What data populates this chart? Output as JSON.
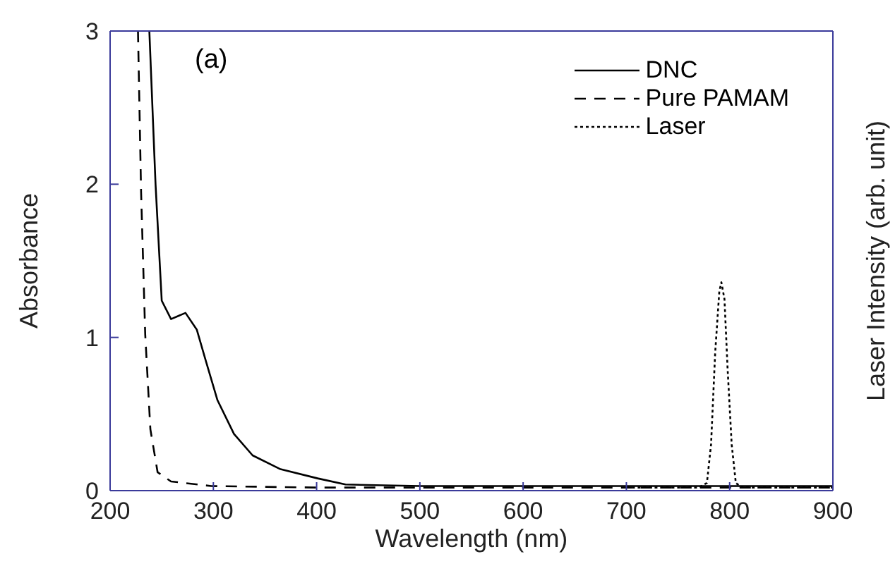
{
  "chart_data": {
    "type": "line",
    "xlabel": "Wavelength (nm)",
    "ylabel": "Absorbance",
    "y2label": "Laser Intensity (arb. unit)",
    "annotations": [
      "(a)"
    ],
    "xlim": [
      200,
      900
    ],
    "xticks": [
      200,
      300,
      400,
      500,
      600,
      700,
      800,
      900
    ],
    "ylim": [
      0,
      3
    ],
    "yticks": [
      0,
      1,
      2,
      3
    ],
    "legend": "top right",
    "marker": "none",
    "series": [
      {
        "name": "DNC",
        "color": "#000000",
        "line_style": "solid",
        "x": [
          238,
          244,
          250,
          259,
          273,
          284,
          293,
          304,
          320,
          338,
          365,
          401,
          428,
          500,
          600,
          700,
          800,
          900
        ],
        "values": [
          3,
          2.0,
          1.24,
          1.12,
          1.16,
          1.05,
          0.84,
          0.59,
          0.37,
          0.23,
          0.14,
          0.08,
          0.04,
          0.03,
          0.03,
          0.03,
          0.03,
          0.03
        ]
      },
      {
        "name": "Pure PAMAM",
        "color": "#000000",
        "line_style": "dashed",
        "x": [
          227,
          230,
          234,
          239,
          246,
          259,
          298,
          400,
          500,
          600,
          700,
          800,
          900
        ],
        "values": [
          3,
          1.95,
          1.02,
          0.4,
          0.12,
          0.06,
          0.03,
          0.02,
          0.02,
          0.02,
          0.02,
          0.02,
          0.02
        ]
      },
      {
        "name": "Laser",
        "color": "#000000",
        "line_style": "dotted",
        "x": [
          700,
          770,
          778,
          782,
          786,
          790,
          792,
          795,
          798,
          802,
          806,
          812,
          900
        ],
        "values": [
          0.02,
          0.02,
          0.05,
          0.3,
          0.9,
          1.3,
          1.36,
          1.25,
          0.8,
          0.3,
          0.05,
          0.02,
          0.02
        ]
      }
    ]
  }
}
